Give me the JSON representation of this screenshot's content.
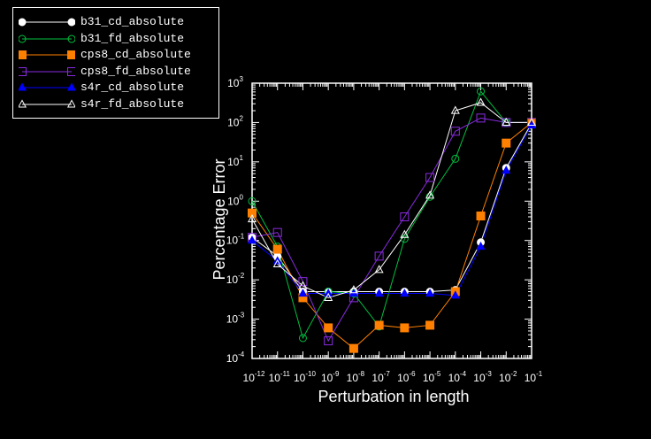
{
  "chart_data": {
    "type": "line",
    "xlabel": "Perturbation in length",
    "ylabel": "Percentage Error",
    "xscale": "log",
    "yscale": "log",
    "xlim": [
      1e-12,
      0.1
    ],
    "ylim": [
      0.0001,
      1000
    ],
    "grid": false,
    "legend_position": "top-left",
    "x_ticks": [
      {
        "value": 1e-12,
        "mantissa": "10",
        "exp": "-12"
      },
      {
        "value": 1e-11,
        "mantissa": "10",
        "exp": "-11"
      },
      {
        "value": 1e-10,
        "mantissa": "10",
        "exp": "-10"
      },
      {
        "value": 1e-09,
        "mantissa": "10",
        "exp": "-9"
      },
      {
        "value": 1e-08,
        "mantissa": "10",
        "exp": "-8"
      },
      {
        "value": 1e-07,
        "mantissa": "10",
        "exp": "-7"
      },
      {
        "value": 1e-06,
        "mantissa": "10",
        "exp": "-6"
      },
      {
        "value": 1e-05,
        "mantissa": "10",
        "exp": "-5"
      },
      {
        "value": 0.0001,
        "mantissa": "10",
        "exp": "-4"
      },
      {
        "value": 0.001,
        "mantissa": "10",
        "exp": "-3"
      },
      {
        "value": 0.01,
        "mantissa": "10",
        "exp": "-2"
      },
      {
        "value": 0.1,
        "mantissa": "10",
        "exp": "-1"
      }
    ],
    "y_ticks": [
      {
        "value": 0.0001,
        "mantissa": "10",
        "exp": "-4"
      },
      {
        "value": 0.001,
        "mantissa": "10",
        "exp": "-3"
      },
      {
        "value": 0.01,
        "mantissa": "10",
        "exp": "-2"
      },
      {
        "value": 0.1,
        "mantissa": "10",
        "exp": "-1"
      },
      {
        "value": 1,
        "mantissa": "10",
        "exp": "0"
      },
      {
        "value": 10,
        "mantissa": "10",
        "exp": "1"
      },
      {
        "value": 100,
        "mantissa": "10",
        "exp": "2"
      },
      {
        "value": 1000,
        "mantissa": "10",
        "exp": "3"
      }
    ],
    "x": [
      1e-12,
      1e-11,
      1e-10,
      1e-09,
      1e-08,
      1e-07,
      1e-06,
      1e-05,
      0.0001,
      0.001,
      0.01,
      0.1
    ],
    "series": [
      {
        "name": "b31_cd_absolute",
        "color": "#ffffff",
        "marker": "circle",
        "filled": true,
        "values": [
          0.12,
          0.04,
          0.005,
          0.005,
          0.005,
          0.005,
          0.005,
          0.005,
          0.0055,
          0.09,
          7,
          95
        ]
      },
      {
        "name": "b31_fd_absolute",
        "color": "#00c040",
        "marker": "circle",
        "filled": false,
        "values": [
          1.0,
          0.07,
          0.00033,
          0.005,
          0.0045,
          0.00065,
          0.11,
          1.3,
          12,
          620,
          100,
          100
        ]
      },
      {
        "name": "cps8_cd_absolute",
        "color": "#ff8000",
        "marker": "square",
        "filled": true,
        "values": [
          0.5,
          0.06,
          0.0035,
          0.0006,
          0.00018,
          0.0007,
          0.0006,
          0.0007,
          0.005,
          0.42,
          30,
          100
        ]
      },
      {
        "name": "cps8_fd_absolute",
        "color": "#8a2be2",
        "marker": "square",
        "filled": false,
        "values": [
          0.12,
          0.16,
          0.009,
          0.00028,
          0.0035,
          0.04,
          0.4,
          4,
          60,
          130,
          100,
          100
        ]
      },
      {
        "name": "s4r_cd_absolute",
        "color": "#0000ff",
        "marker": "triangle",
        "filled": true,
        "values": [
          0.1,
          0.03,
          0.0045,
          0.0045,
          0.0045,
          0.0045,
          0.0045,
          0.0045,
          0.004,
          0.07,
          6,
          85
        ]
      },
      {
        "name": "s4r_fd_absolute",
        "color": "#ffffff",
        "marker": "triangle",
        "filled": false,
        "values": [
          0.35,
          0.025,
          0.007,
          0.0035,
          0.0055,
          0.018,
          0.14,
          1.4,
          200,
          320,
          100,
          100
        ]
      }
    ]
  }
}
